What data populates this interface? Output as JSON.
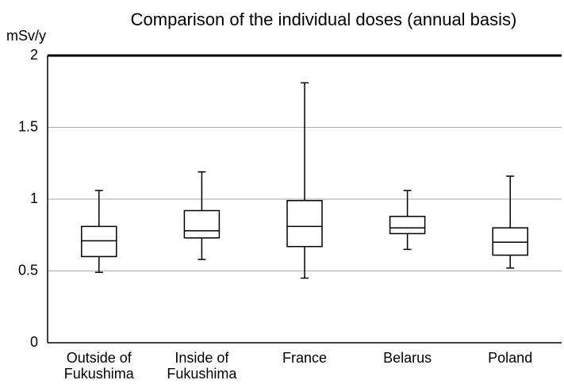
{
  "chart_data": {
    "type": "box",
    "title": "Comparison of the individual doses (annual basis)",
    "y_label": "mSv/y",
    "categories": [
      [
        "Outside of",
        "Fukushima"
      ],
      [
        "Inside of",
        "Fukushima"
      ],
      [
        "France"
      ],
      [
        "Belarus"
      ],
      [
        "Poland"
      ]
    ],
    "boxes": [
      {
        "min": 0.49,
        "q1": 0.6,
        "median": 0.71,
        "q3": 0.81,
        "max": 1.06
      },
      {
        "min": 0.58,
        "q1": 0.73,
        "median": 0.78,
        "q3": 0.92,
        "max": 1.19
      },
      {
        "min": 0.45,
        "q1": 0.67,
        "median": 0.81,
        "q3": 0.99,
        "max": 1.81
      },
      {
        "min": 0.65,
        "q1": 0.76,
        "median": 0.8,
        "q3": 0.88,
        "max": 1.06
      },
      {
        "min": 0.52,
        "q1": 0.61,
        "median": 0.7,
        "q3": 0.8,
        "max": 1.16
      }
    ],
    "color": "#000000",
    "ylim": [
      0,
      2
    ],
    "yticks": [
      0,
      0.5,
      1,
      1.5,
      2
    ],
    "grid": true
  }
}
